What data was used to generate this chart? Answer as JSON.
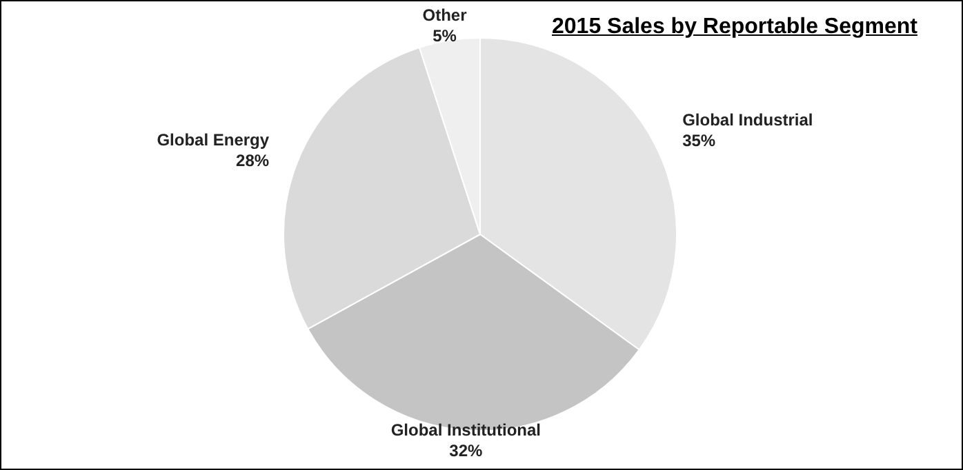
{
  "chart_data": {
    "type": "pie",
    "title": "2015 Sales by Reportable Segment",
    "categories": [
      "Global Industrial",
      "Global Institutional",
      "Global Energy",
      "Other"
    ],
    "values": [
      35,
      32,
      28,
      5
    ],
    "value_labels": [
      "35%",
      "32%",
      "28%",
      "5%"
    ],
    "colors": [
      "#e4e4e4",
      "#c4c4c4",
      "#dadada",
      "#efefef"
    ],
    "legend": false
  }
}
